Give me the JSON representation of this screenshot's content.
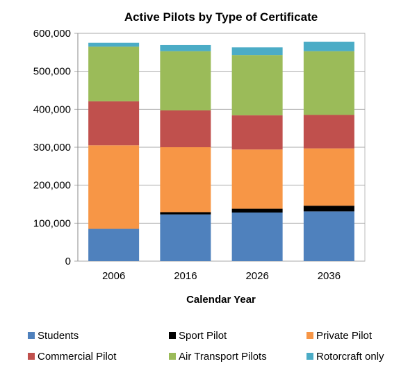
{
  "chart_data": {
    "type": "bar",
    "stacked": true,
    "title": "Active Pilots by Type of Certificate",
    "xlabel": "Calendar Year",
    "ylabel": "",
    "ylim": [
      0,
      600000
    ],
    "yticks": [
      0,
      100000,
      200000,
      300000,
      400000,
      500000,
      600000
    ],
    "ytick_labels": [
      "0",
      "100,000",
      "200,000",
      "300,000",
      "400,000",
      "500,000",
      "600,000"
    ],
    "categories": [
      "2006",
      "2016",
      "2026",
      "2036"
    ],
    "grid": true,
    "legend_placement": "bottom",
    "series": [
      {
        "name": "Students",
        "color": "#4f81bd",
        "values": [
          85000,
          123000,
          128000,
          131000
        ]
      },
      {
        "name": "Sport Pilot",
        "color": "#000000",
        "values": [
          0,
          6000,
          10000,
          15000
        ]
      },
      {
        "name": "Private Pilot",
        "color": "#f79646",
        "values": [
          220000,
          171000,
          156000,
          151000
        ]
      },
      {
        "name": "Commercial Pilot",
        "color": "#c0504d",
        "values": [
          116000,
          97000,
          90000,
          88000
        ]
      },
      {
        "name": "Air Transport Pilots",
        "color": "#9bbb59",
        "values": [
          144000,
          156000,
          159000,
          168000
        ]
      },
      {
        "name": "Rotorcraft only",
        "color": "#4bacc6",
        "values": [
          10000,
          16000,
          20000,
          25000
        ]
      }
    ]
  }
}
